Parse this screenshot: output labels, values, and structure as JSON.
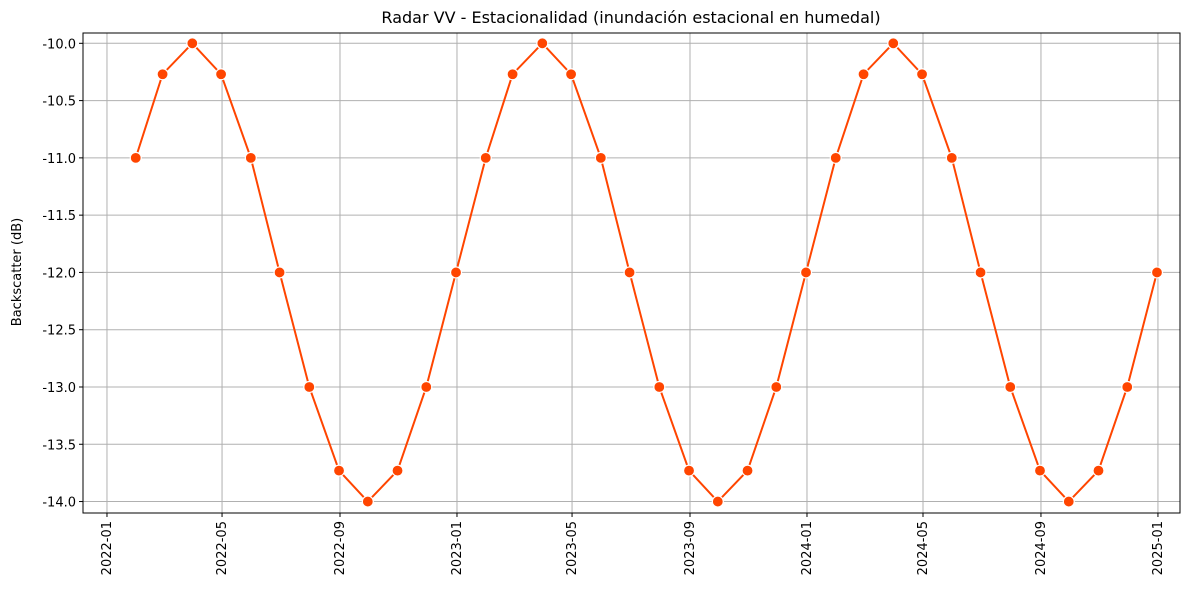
{
  "chart_data": {
    "type": "line",
    "title": "Radar VV - Estacionalidad (inundación estacional en humedal)",
    "xlabel": "",
    "ylabel": "Backscatter (dB)",
    "x_ticks": [
      "2022-01",
      "2022-05",
      "2022-09",
      "2023-01",
      "2023-05",
      "2023-09",
      "2024-01",
      "2024-05",
      "2024-09",
      "2025-01"
    ],
    "y_ticks": [
      "-10.0",
      "-10.5",
      "-11.0",
      "-11.5",
      "-12.0",
      "-12.5",
      "-13.0",
      "-13.5",
      "-14.0"
    ],
    "xlim": [
      "2021-12-07",
      "2025-01-24"
    ],
    "ylim": [
      -14.1,
      -9.91
    ],
    "grid": true,
    "line_color": "#ff4500",
    "series": [
      {
        "x": [
          "2022-01-31",
          "2022-02-28",
          "2022-03-31",
          "2022-04-30",
          "2022-05-31",
          "2022-06-30",
          "2022-07-31",
          "2022-08-31",
          "2022-09-30",
          "2022-10-31",
          "2022-11-30",
          "2022-12-31",
          "2023-01-31",
          "2023-02-28",
          "2023-03-31",
          "2023-04-30",
          "2023-05-31",
          "2023-06-30",
          "2023-07-31",
          "2023-08-31",
          "2023-09-30",
          "2023-10-31",
          "2023-11-30",
          "2023-12-31",
          "2024-01-31",
          "2024-02-29",
          "2024-03-31",
          "2024-04-30",
          "2024-05-31",
          "2024-06-30",
          "2024-07-31",
          "2024-08-31",
          "2024-09-30",
          "2024-10-31",
          "2024-11-30",
          "2024-12-31"
        ],
        "values": [
          -11.0,
          -10.27,
          -10.0,
          -10.27,
          -11.0,
          -12.0,
          -13.0,
          -13.73,
          -14.0,
          -13.73,
          -13.0,
          -12.0,
          -11.0,
          -10.27,
          -10.0,
          -10.27,
          -11.0,
          -12.0,
          -13.0,
          -13.73,
          -14.0,
          -13.73,
          -13.0,
          -12.0,
          -11.0,
          -10.27,
          -10.0,
          -10.27,
          -11.0,
          -12.0,
          -13.0,
          -13.73,
          -14.0,
          -13.73,
          -13.0,
          -12.0
        ]
      }
    ]
  }
}
